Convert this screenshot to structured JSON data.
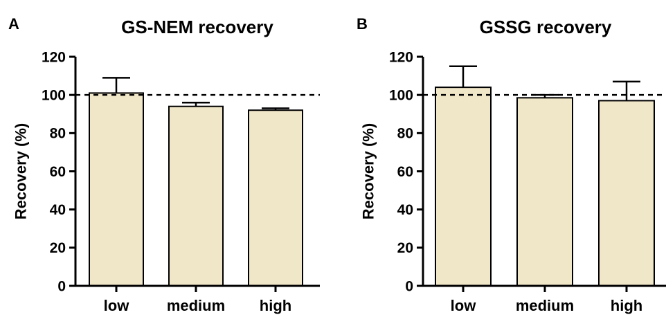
{
  "colors": {
    "bar_fill": "#f0e6c8",
    "stroke": "#000000",
    "background": "#ffffff"
  },
  "chart_data": [
    {
      "type": "bar",
      "panel": "A",
      "title": "GS-NEM recovery",
      "xlabel": "",
      "ylabel": "Recovery (%)",
      "categories": [
        "low",
        "medium",
        "high"
      ],
      "values": [
        101,
        94,
        92
      ],
      "error_upper": [
        109,
        96,
        93
      ],
      "ylim": [
        0,
        120
      ],
      "yticks": [
        0,
        20,
        40,
        60,
        80,
        100,
        120
      ],
      "reference_line": 100,
      "grid": false
    },
    {
      "type": "bar",
      "panel": "B",
      "title": "GSSG recovery",
      "xlabel": "",
      "ylabel": "Recovery (%)",
      "categories": [
        "low",
        "medium",
        "high"
      ],
      "values": [
        104,
        98.5,
        97
      ],
      "error_upper": [
        115,
        100,
        107
      ],
      "ylim": [
        0,
        120
      ],
      "yticks": [
        0,
        20,
        40,
        60,
        80,
        100,
        120
      ],
      "reference_line": 100,
      "grid": false
    }
  ]
}
